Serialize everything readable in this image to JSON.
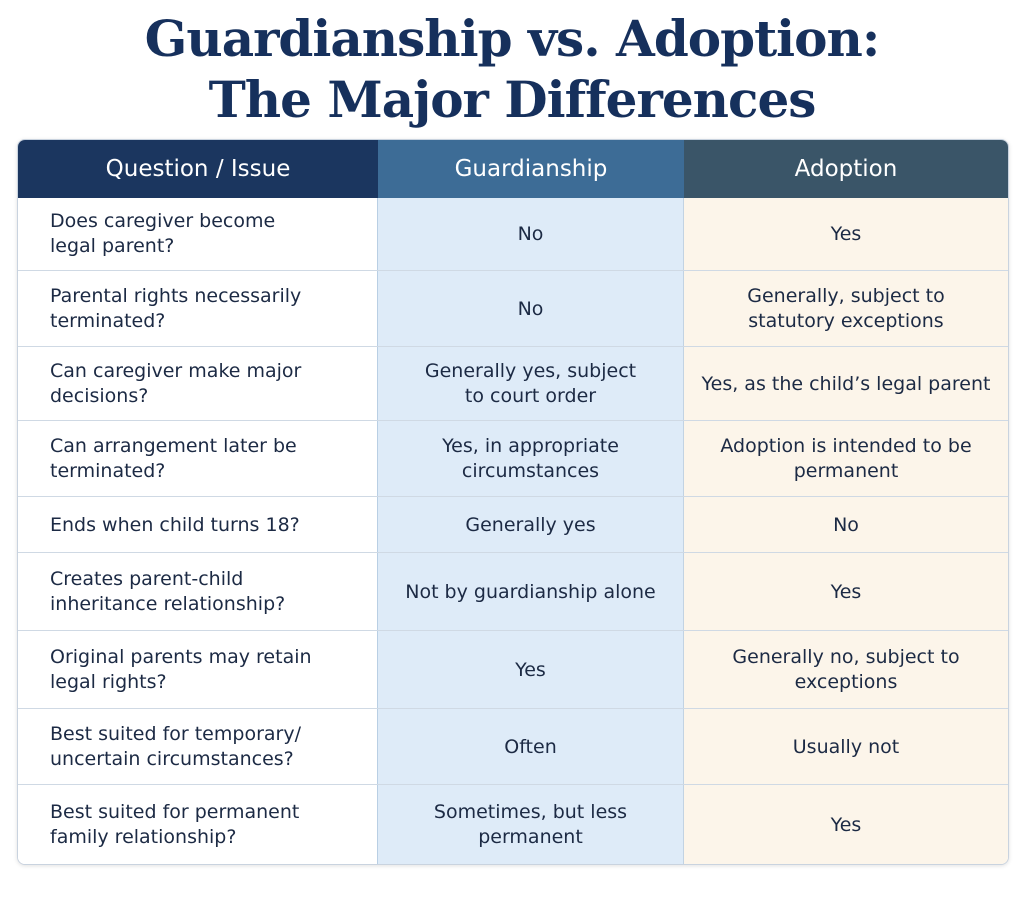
{
  "title": {
    "line1": "Guardianship vs. Adoption:",
    "line2": "The Major Differences"
  },
  "table": {
    "headers": [
      "Question / Issue",
      "Guardianship",
      "Adoption"
    ],
    "rows": [
      {
        "question": "Does caregiver become\nlegal parent?",
        "guardianship": "No",
        "adoption": "Yes"
      },
      {
        "question": "Parental rights necessarily\nterminated?",
        "guardianship": "No",
        "adoption": "Generally, subject to\nstatutory exceptions"
      },
      {
        "question": "Can caregiver make major\ndecisions?",
        "guardianship": "Generally yes, subject\nto court order",
        "adoption": "Yes, as the child’s legal parent"
      },
      {
        "question": "Can arrangement later be\nterminated?",
        "guardianship": "Yes, in appropriate\ncircumstances",
        "adoption": "Adoption is intended to be\npermanent"
      },
      {
        "question": "Ends when child turns 18?",
        "guardianship": "Generally yes",
        "adoption": "No"
      },
      {
        "question": "Creates parent-child\ninheritance relationship?",
        "guardianship": "Not by guardianship alone",
        "adoption": "Yes"
      },
      {
        "question": "Original parents may retain\nlegal rights?",
        "guardianship": "Yes",
        "adoption": "Generally no, subject to\nexceptions"
      },
      {
        "question": "Best suited for temporary/\nuncertain circumstances?",
        "guardianship": "Often",
        "adoption": "Usually not"
      },
      {
        "question": "Best suited for permanent\nfamily relationship?",
        "guardianship": "Sometimes, but less\npermanent",
        "adoption": "Yes"
      }
    ]
  }
}
